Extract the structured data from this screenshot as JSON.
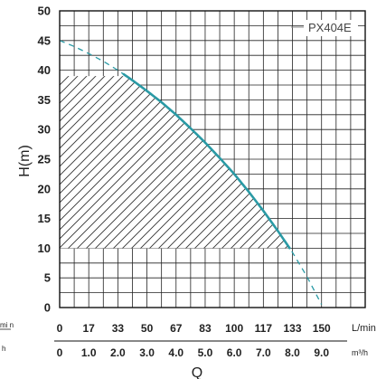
{
  "chart_data": {
    "type": "line",
    "model_label": "PX404E",
    "ylabel": "H(m)",
    "xlabel": "Q",
    "ylim": [
      0,
      50
    ],
    "y_ticks": [
      "0",
      "5",
      "10",
      "15",
      "20",
      "25",
      "30",
      "35",
      "40",
      "45",
      "50"
    ],
    "xlim": [
      0,
      10.5
    ],
    "x_axis_lmin": {
      "unit": "L/min",
      "ticks": [
        {
          "value": 0,
          "label": "0"
        },
        {
          "value": 1,
          "label": "17"
        },
        {
          "value": 2,
          "label": "33"
        },
        {
          "value": 3,
          "label": "50"
        },
        {
          "value": 4,
          "label": "67"
        },
        {
          "value": 5,
          "label": "83"
        },
        {
          "value": 6,
          "label": "100"
        },
        {
          "value": 7,
          "label": "117"
        },
        {
          "value": 8,
          "label": "133"
        },
        {
          "value": 9,
          "label": "150"
        }
      ]
    },
    "x_axis_m3h": {
      "unit": "m³/h",
      "ticks": [
        {
          "value": 0,
          "label": "0"
        },
        {
          "value": 1,
          "label": "1.0"
        },
        {
          "value": 2,
          "label": "2.0"
        },
        {
          "value": 3,
          "label": "3.0"
        },
        {
          "value": 4,
          "label": "4.0"
        },
        {
          "value": 5,
          "label": "5.0"
        },
        {
          "value": 6,
          "label": "6.0"
        },
        {
          "value": 7,
          "label": "7.0"
        },
        {
          "value": 8,
          "label": "8.0"
        },
        {
          "value": 9,
          "label": "9.0"
        }
      ]
    },
    "curve": {
      "x": [
        0,
        0.5,
        1,
        1.5,
        2,
        2.5,
        3,
        3.5,
        4,
        4.5,
        5,
        5.5,
        6,
        6.5,
        7,
        7.5,
        8,
        8.5,
        9
      ],
      "y": [
        45,
        44,
        42.8,
        41.5,
        40,
        38.3,
        36.5,
        34.6,
        32.5,
        30.2,
        27.8,
        25.2,
        22.5,
        19.5,
        16.3,
        12.9,
        9.3,
        5.2,
        0.5
      ],
      "solid_range": [
        2.2,
        7.9
      ],
      "color": "#2a9aa5"
    },
    "operating_region": {
      "x_min": 0,
      "h_min": 10,
      "h_max": 39,
      "pattern": "diagonal-hatch"
    },
    "grid": true,
    "left_edge_fragments": [
      "mi n",
      "h"
    ]
  }
}
